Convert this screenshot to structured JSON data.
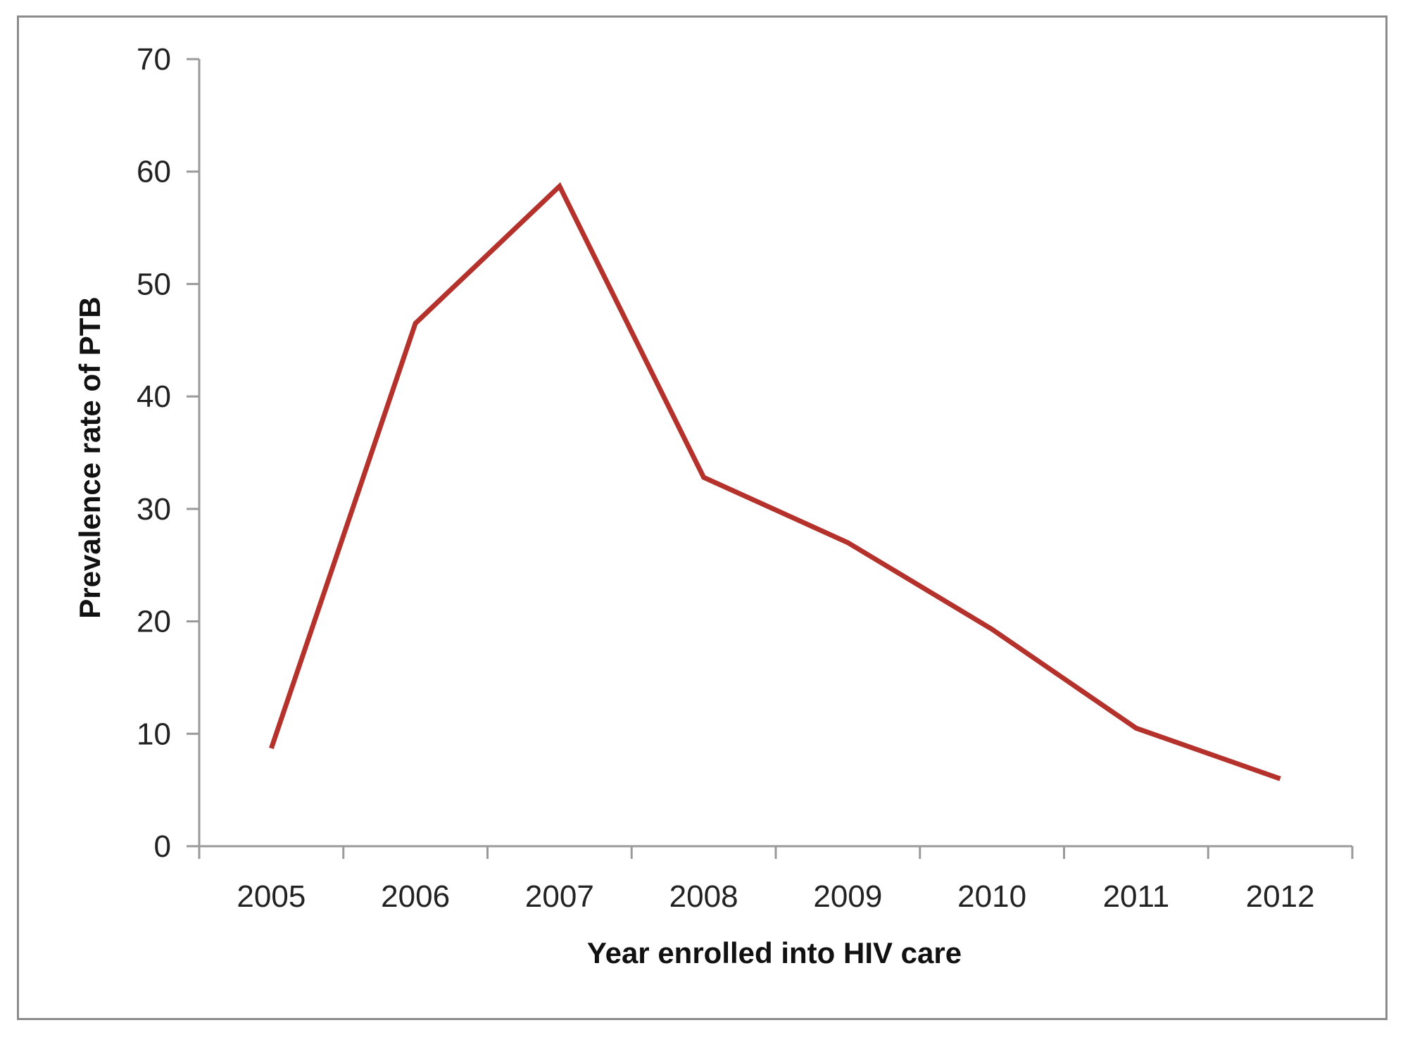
{
  "chart_data": {
    "type": "line",
    "title": "",
    "xlabel": "Year enrolled into HIV care",
    "ylabel": "Prevalence rate of PTB",
    "categories": [
      "2005",
      "2006",
      "2007",
      "2008",
      "2009",
      "2010",
      "2011",
      "2012"
    ],
    "series": [
      {
        "name": "Prevalence rate of PTB",
        "values": [
          8.7,
          46.5,
          58.7,
          32.8,
          27.0,
          19.3,
          10.5,
          6.0
        ],
        "color": "#b5312b"
      }
    ],
    "ylim": [
      0,
      70
    ],
    "yticks": [
      0,
      10,
      20,
      30,
      40,
      50,
      60,
      70
    ],
    "grid": false,
    "legend": "none"
  }
}
